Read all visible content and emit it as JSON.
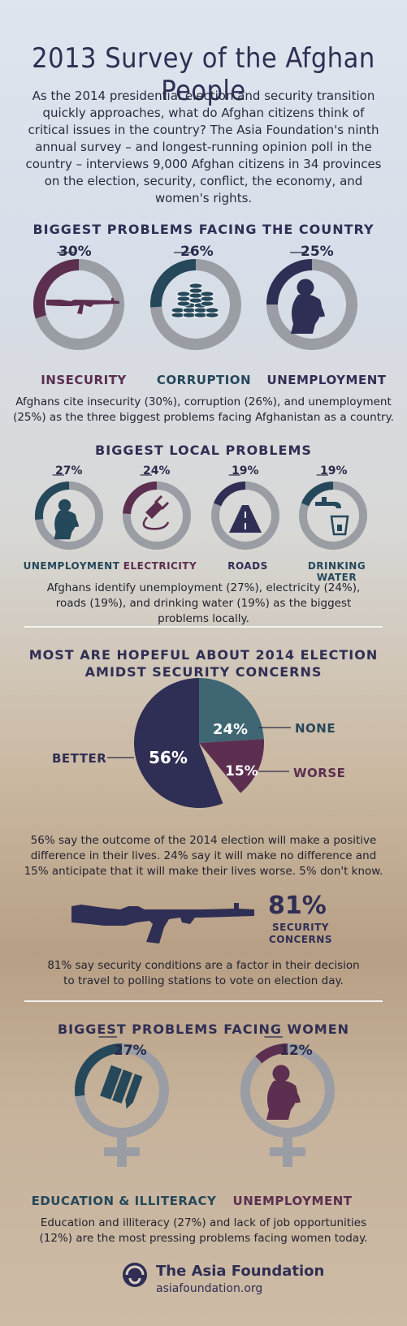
{
  "title": "2013 Survey of the Afghan People",
  "intro": "As the 2014 presidential election and security transition quickly approaches, what do Afghan citizens think of critical issues in the country? The Asia Foundation's ninth annual survey – and longest-running opinion poll in the country – interviews 9,000 Afghan citizens in 34 provinces on the election, security, conflict, the economy, and women's rights.",
  "colors": {
    "navy": "#2f2e54",
    "plum": "#5c2e4f",
    "teal": "#25485a",
    "gray": "#9a9da3"
  },
  "national": {
    "heading": "BIGGEST PROBLEMS FACING THE COUNTRY",
    "items": [
      {
        "pct": "30%",
        "value": 30,
        "label": "INSECURITY",
        "icon": "rifle-icon",
        "color": "#5c2e4f"
      },
      {
        "pct": "26%",
        "value": 26,
        "label": "CORRUPTION",
        "icon": "coins-icon",
        "color": "#25485a"
      },
      {
        "pct": "25%",
        "value": 25,
        "label": "UNEMPLOYMENT",
        "icon": "crouching-person-icon",
        "color": "#2f2e54"
      }
    ],
    "summary": "Afghans cite insecurity (30%), corruption (26%), and unemployment (25%) as the three biggest problems facing Afghanistan as a country."
  },
  "local": {
    "heading": "BIGGEST LOCAL PROBLEMS",
    "items": [
      {
        "pct": "27%",
        "value": 27,
        "label": "UNEMPLOYMENT",
        "icon": "crouching-person-icon",
        "color": "#25485a"
      },
      {
        "pct": "24%",
        "value": 24,
        "label": "ELECTRICITY",
        "icon": "plug-icon",
        "color": "#5c2e4f"
      },
      {
        "pct": "19%",
        "value": 19,
        "label": "ROADS",
        "icon": "road-icon",
        "color": "#2f2e54"
      },
      {
        "pct": "19%",
        "value": 19,
        "label": "DRINKING WATER",
        "icon": "faucet-icon",
        "color": "#25485a"
      }
    ],
    "summary": "Afghans identify unemployment (27%), electricity (24%), roads (19%), and drinking water (19%) as the biggest problems locally."
  },
  "election": {
    "heading_line1": "MOST ARE HOPEFUL ABOUT 2014 ELECTION",
    "heading_line2": "AMIDST SECURITY CONCERNS",
    "summary": "56% say the outcome of the 2014 election will make a positive difference in their lives. 24% say it will make no difference and 15% anticipate that it will make their lives worse. 5% don't know.",
    "security_pct": "81%",
    "security_label_line1": "SECURITY",
    "security_label_line2": "CONCERNS",
    "security_summary": "81% say security conditions are a factor in their decision to travel to polling stations to vote on election day."
  },
  "chart_data": {
    "type": "pie",
    "slices": [
      {
        "label": "BETTER",
        "value": 56,
        "value_label": "56%",
        "color": "#2f2e54"
      },
      {
        "label": "NONE",
        "value": 24,
        "value_label": "24%",
        "color": "#3f6673"
      },
      {
        "label": "WORSE",
        "value": 15,
        "value_label": "15%",
        "color": "#5c2e4f"
      },
      {
        "label": "",
        "value": 5,
        "value_label": "",
        "color": "none"
      }
    ]
  },
  "women": {
    "heading": "BIGGEST PROBLEMS FACING WOMEN",
    "items": [
      {
        "pct": "27%",
        "value": 27,
        "label": "EDUCATION & ILLITERACY",
        "icon": "books-icon",
        "color": "#25485a"
      },
      {
        "pct": "12%",
        "value": 12,
        "label": "UNEMPLOYMENT",
        "icon": "crouching-person-icon",
        "color": "#5c2e4f"
      }
    ],
    "summary": "Education and illiteracy (27%) and lack of job opportunities (12%) are the most pressing problems facing women today."
  },
  "footer": {
    "org": "The Asia Foundation",
    "url": "asiafoundation.org",
    "logo_icon": "asia-foundation-logo-icon"
  }
}
